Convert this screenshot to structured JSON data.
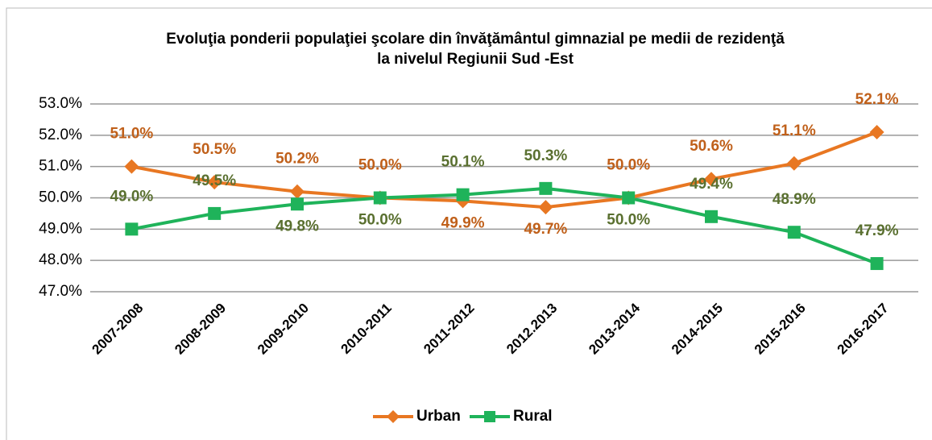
{
  "chart_data": {
    "type": "line",
    "title": [
      "Evoluţia ponderii populaţiei şcolare din învăţământul gimnazial pe medii de rezidenţă",
      "la nivelul Regiunii Sud -Est"
    ],
    "categories": [
      "2007-2008",
      "2008-2009",
      "2009-2010",
      "2010-2011",
      "2011-2012",
      "2012.2013",
      "2013-2014",
      "2014-2015",
      "2015-2016",
      "2016-2017"
    ],
    "series": [
      {
        "name": "Urban",
        "color": "#e87722",
        "label_color": "#c0601a",
        "values": [
          51.0,
          50.5,
          50.2,
          50.0,
          49.9,
          49.7,
          50.0,
          50.6,
          51.1,
          52.1
        ],
        "value_labels": [
          "51.0%",
          "50.5%",
          "50.2%",
          "50.0%",
          "49.9%",
          "49.7%",
          "50.0%",
          "50.6%",
          "51.1%",
          "52.1%"
        ]
      },
      {
        "name": "Rural",
        "color": "#1fb35a",
        "label_color": "#5a7030",
        "values": [
          49.0,
          49.5,
          49.8,
          50.0,
          50.1,
          50.3,
          50.0,
          49.4,
          48.9,
          47.9
        ],
        "value_labels": [
          "49.0%",
          "49.5%",
          "49.8%",
          "50.0%",
          "50.1%",
          "50.3%",
          "50.0%",
          "49.4%",
          "48.9%",
          "47.9%"
        ]
      }
    ],
    "ylim": [
      47,
      53
    ],
    "yticks": [
      {
        "value": 47,
        "label": "47.0%"
      },
      {
        "value": 48,
        "label": "48.0%"
      },
      {
        "value": 49,
        "label": "49.0%"
      },
      {
        "value": 50,
        "label": "50.0%"
      },
      {
        "value": 51,
        "label": "51.0%"
      },
      {
        "value": 52,
        "label": "52.0%"
      },
      {
        "value": 53,
        "label": "53.0%"
      }
    ],
    "grid": true,
    "legend": "bottom"
  }
}
